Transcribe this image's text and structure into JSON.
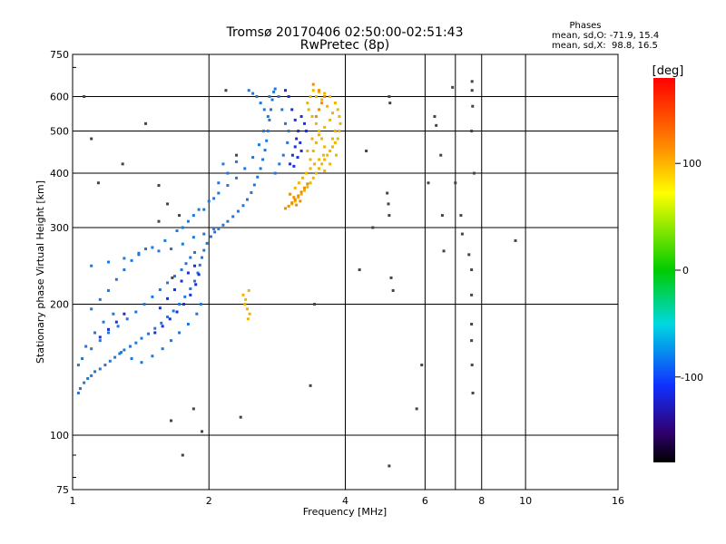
{
  "chart_data": {
    "type": "scatter",
    "title": "Tromsø 20170406 02:50:00-02:51:43",
    "subtitle": "RwPretec (8p)",
    "xlabel": "Frequency [MHz]",
    "ylabel": "Stationary phase Virtual Height [km]",
    "x_scale": "log",
    "y_scale": "log",
    "xlim": [
      1,
      16
    ],
    "ylim": [
      75,
      750
    ],
    "x_ticks": [
      1,
      2,
      4,
      6,
      8,
      10,
      16
    ],
    "y_ticks": [
      75,
      100,
      200,
      300,
      400,
      500,
      600,
      750
    ],
    "x_grid": [
      1,
      2,
      4,
      6,
      7,
      8,
      10
    ],
    "y_grid": [
      100,
      200,
      300,
      400,
      500,
      600
    ],
    "grid": true,
    "phase_stats": {
      "heading": "Phases",
      "line_o": "mean, sd,O: -71.9, 15.4",
      "line_x": "mean, sd,X:  98.8, 16.5"
    },
    "colorbar": {
      "label": "[deg]",
      "range": [
        -180,
        180
      ],
      "ticks": [
        100,
        0,
        -100
      ]
    },
    "series": [
      {
        "trace": "low-frequency trace",
        "color": "#1e78dc",
        "points": [
          [
            1.03,
            125
          ],
          [
            1.04,
            128
          ],
          [
            1.06,
            132
          ],
          [
            1.08,
            135
          ],
          [
            1.1,
            137
          ],
          [
            1.12,
            140
          ],
          [
            1.15,
            142
          ],
          [
            1.18,
            145
          ],
          [
            1.21,
            148
          ],
          [
            1.24,
            151
          ],
          [
            1.27,
            154
          ],
          [
            1.3,
            157
          ],
          [
            1.34,
            160
          ],
          [
            1.38,
            163
          ],
          [
            1.42,
            167
          ],
          [
            1.47,
            171
          ],
          [
            1.52,
            176
          ],
          [
            1.57,
            181
          ],
          [
            1.62,
            187
          ],
          [
            1.67,
            193
          ],
          [
            1.72,
            200
          ],
          [
            1.77,
            208
          ],
          [
            1.82,
            217
          ],
          [
            1.86,
            226
          ],
          [
            1.89,
            236
          ],
          [
            1.91,
            246
          ],
          [
            1.93,
            256
          ],
          [
            1.95,
            266
          ],
          [
            1.98,
            276
          ],
          [
            2.02,
            286
          ],
          [
            2.06,
            293
          ],
          [
            2.1,
            298
          ],
          [
            2.15,
            304
          ],
          [
            2.2,
            310
          ],
          [
            2.26,
            318
          ],
          [
            2.32,
            327
          ],
          [
            2.38,
            337
          ],
          [
            2.43,
            348
          ],
          [
            2.48,
            361
          ],
          [
            2.52,
            376
          ],
          [
            2.56,
            392
          ],
          [
            2.6,
            410
          ],
          [
            2.63,
            430
          ],
          [
            2.66,
            452
          ],
          [
            2.68,
            475
          ],
          [
            2.7,
            500
          ],
          [
            2.72,
            530
          ],
          [
            2.74,
            560
          ],
          [
            2.76,
            590
          ],
          [
            2.78,
            615
          ],
          [
            2.8,
            625
          ],
          [
            1.05,
            150
          ],
          [
            1.1,
            158
          ],
          [
            1.15,
            165
          ],
          [
            1.2,
            172
          ],
          [
            1.26,
            178
          ],
          [
            1.32,
            185
          ],
          [
            1.38,
            192
          ],
          [
            1.44,
            200
          ],
          [
            1.5,
            208
          ],
          [
            1.56,
            216
          ],
          [
            1.62,
            224
          ],
          [
            1.68,
            232
          ],
          [
            1.74,
            240
          ],
          [
            1.78,
            248
          ],
          [
            1.82,
            256
          ],
          [
            1.86,
            263
          ],
          [
            1.03,
            145
          ],
          [
            1.07,
            160
          ],
          [
            1.12,
            172
          ],
          [
            1.17,
            182
          ],
          [
            1.23,
            190
          ],
          [
            1.1,
            195
          ],
          [
            1.15,
            205
          ],
          [
            1.2,
            215
          ],
          [
            1.25,
            228
          ],
          [
            1.3,
            240
          ],
          [
            1.35,
            252
          ],
          [
            1.4,
            262
          ],
          [
            1.45,
            268
          ],
          [
            1.55,
            265
          ],
          [
            1.65,
            268
          ],
          [
            1.75,
            275
          ],
          [
            1.85,
            285
          ],
          [
            1.95,
            290
          ],
          [
            2.05,
            298
          ],
          [
            1.9,
            330
          ],
          [
            2.0,
            345
          ],
          [
            2.1,
            360
          ],
          [
            2.2,
            375
          ],
          [
            2.3,
            390
          ],
          [
            2.4,
            410
          ],
          [
            2.5,
            435
          ],
          [
            2.58,
            465
          ],
          [
            2.64,
            500
          ],
          [
            2.7,
            540
          ],
          [
            1.92,
            200
          ],
          [
            1.88,
            190
          ],
          [
            1.8,
            180
          ],
          [
            1.72,
            172
          ],
          [
            1.65,
            165
          ],
          [
            1.58,
            158
          ],
          [
            1.5,
            152
          ],
          [
            1.42,
            147
          ],
          [
            1.35,
            150
          ],
          [
            1.28,
            155
          ],
          [
            2.45,
            620
          ],
          [
            2.55,
            600
          ],
          [
            2.6,
            580
          ],
          [
            2.65,
            560
          ],
          [
            2.72,
            600
          ],
          [
            2.5,
            610
          ],
          [
            2.85,
            600
          ],
          [
            2.9,
            560
          ],
          [
            2.95,
            520
          ],
          [
            3.0,
            500
          ],
          [
            2.98,
            470
          ],
          [
            2.92,
            440
          ],
          [
            2.86,
            420
          ],
          [
            2.8,
            400
          ],
          [
            2.3,
            425
          ],
          [
            2.2,
            400
          ],
          [
            2.1,
            380
          ],
          [
            2.15,
            420
          ],
          [
            2.05,
            350
          ],
          [
            1.95,
            330
          ],
          [
            1.85,
            320
          ],
          [
            1.8,
            310
          ],
          [
            1.75,
            300
          ],
          [
            1.7,
            295
          ],
          [
            1.6,
            280
          ],
          [
            1.5,
            270
          ],
          [
            1.4,
            260
          ],
          [
            1.3,
            255
          ],
          [
            1.2,
            250
          ],
          [
            1.1,
            245
          ]
        ]
      },
      {
        "trace": "deep blue O-mode",
        "color": "#1830d8",
        "points": [
          [
            1.52,
            172
          ],
          [
            1.58,
            178
          ],
          [
            1.64,
            185
          ],
          [
            1.7,
            192
          ],
          [
            1.76,
            200
          ],
          [
            1.82,
            210
          ],
          [
            1.87,
            222
          ],
          [
            1.9,
            234
          ],
          [
            1.86,
            245
          ],
          [
            1.8,
            236
          ],
          [
            1.74,
            226
          ],
          [
            1.68,
            216
          ],
          [
            1.62,
            206
          ],
          [
            1.56,
            196
          ],
          [
            1.3,
            190
          ],
          [
            1.25,
            182
          ],
          [
            1.2,
            175
          ],
          [
            1.15,
            168
          ],
          [
            3.02,
            420
          ],
          [
            3.06,
            440
          ],
          [
            3.1,
            460
          ],
          [
            3.12,
            480
          ],
          [
            3.15,
            500
          ],
          [
            3.1,
            530
          ],
          [
            3.05,
            560
          ],
          [
            3.0,
            600
          ],
          [
            2.95,
            620
          ],
          [
            3.18,
            470
          ],
          [
            3.2,
            450
          ],
          [
            3.14,
            435
          ],
          [
            3.08,
            415
          ],
          [
            3.2,
            540
          ],
          [
            3.25,
            520
          ],
          [
            3.28,
            500
          ]
        ]
      },
      {
        "trace": "X-mode trace",
        "color": "#f0b400",
        "points": [
          [
            3.05,
            340
          ],
          [
            3.1,
            345
          ],
          [
            3.15,
            352
          ],
          [
            3.2,
            358
          ],
          [
            3.25,
            365
          ],
          [
            3.3,
            372
          ],
          [
            3.35,
            380
          ],
          [
            3.4,
            390
          ],
          [
            3.45,
            400
          ],
          [
            3.5,
            410
          ],
          [
            3.55,
            420
          ],
          [
            3.6,
            430
          ],
          [
            3.65,
            440
          ],
          [
            3.7,
            450
          ],
          [
            3.75,
            460
          ],
          [
            3.8,
            470
          ],
          [
            3.85,
            480
          ],
          [
            3.88,
            500
          ],
          [
            3.9,
            520
          ],
          [
            3.88,
            540
          ],
          [
            3.85,
            560
          ],
          [
            3.8,
            580
          ],
          [
            3.7,
            600
          ],
          [
            3.6,
            610
          ],
          [
            3.5,
            615
          ],
          [
            3.4,
            620
          ],
          [
            3.35,
            600
          ],
          [
            3.3,
            580
          ],
          [
            3.32,
            560
          ],
          [
            3.38,
            540
          ],
          [
            3.45,
            520
          ],
          [
            3.5,
            500
          ],
          [
            3.55,
            480
          ],
          [
            3.6,
            460
          ],
          [
            3.58,
            440
          ],
          [
            3.5,
            430
          ],
          [
            3.42,
            420
          ],
          [
            3.35,
            410
          ],
          [
            3.28,
            400
          ],
          [
            3.22,
            390
          ],
          [
            3.16,
            380
          ],
          [
            3.1,
            370
          ],
          [
            3.4,
            450
          ],
          [
            3.45,
            470
          ],
          [
            3.5,
            490
          ],
          [
            3.6,
            510
          ],
          [
            3.7,
            530
          ],
          [
            3.75,
            550
          ],
          [
            3.65,
            570
          ],
          [
            3.55,
            590
          ],
          [
            3.45,
            600
          ],
          [
            3.75,
            480
          ],
          [
            3.8,
            500
          ],
          [
            3.82,
            440
          ],
          [
            3.7,
            420
          ],
          [
            3.6,
            405
          ],
          [
            3.35,
            430
          ],
          [
            3.3,
            450
          ],
          [
            3.38,
            480
          ],
          [
            2.4,
            200
          ],
          [
            2.43,
            195
          ],
          [
            2.46,
            190
          ],
          [
            2.44,
            185
          ],
          [
            2.41,
            205
          ],
          [
            2.38,
            210
          ],
          [
            2.45,
            215
          ]
        ]
      },
      {
        "trace": "X-mode lower edge",
        "color": "#f08c00",
        "points": [
          [
            2.95,
            332
          ],
          [
            3.0,
            336
          ],
          [
            3.05,
            342
          ],
          [
            3.1,
            348
          ],
          [
            3.15,
            355
          ],
          [
            3.2,
            362
          ],
          [
            3.25,
            370
          ],
          [
            3.3,
            378
          ],
          [
            3.12,
            338
          ],
          [
            3.18,
            345
          ],
          [
            3.08,
            352
          ],
          [
            3.02,
            358
          ],
          [
            3.45,
            540
          ],
          [
            3.5,
            560
          ],
          [
            3.55,
            580
          ],
          [
            3.6,
            600
          ],
          [
            3.5,
            620
          ],
          [
            3.4,
            640
          ]
        ]
      },
      {
        "trace": "isolated returns",
        "color": "#444444",
        "points": [
          [
            1.06,
            600
          ],
          [
            1.1,
            480
          ],
          [
            1.14,
            380
          ],
          [
            1.29,
            420
          ],
          [
            1.45,
            520
          ],
          [
            1.55,
            375
          ],
          [
            1.62,
            340
          ],
          [
            1.66,
            230
          ],
          [
            1.72,
            320
          ],
          [
            1.55,
            310
          ],
          [
            1.65,
            108
          ],
          [
            1.75,
            90
          ],
          [
            1.85,
            115
          ],
          [
            1.93,
            102
          ],
          [
            2.18,
            620
          ],
          [
            2.3,
            440
          ],
          [
            2.35,
            110
          ],
          [
            3.35,
            130
          ],
          [
            3.42,
            200
          ],
          [
            4.3,
            240
          ],
          [
            4.45,
            450
          ],
          [
            4.6,
            300
          ],
          [
            4.95,
            360
          ],
          [
            4.98,
            340
          ],
          [
            5.0,
            320
          ],
          [
            5.0,
            85
          ],
          [
            5.05,
            230
          ],
          [
            5.1,
            215
          ],
          [
            5.75,
            115
          ],
          [
            5.9,
            145
          ],
          [
            6.1,
            380
          ],
          [
            6.3,
            540
          ],
          [
            6.35,
            515
          ],
          [
            6.5,
            440
          ],
          [
            6.55,
            320
          ],
          [
            6.6,
            265
          ],
          [
            7.2,
            320
          ],
          [
            7.25,
            290
          ],
          [
            7.6,
            210
          ],
          [
            7.6,
            180
          ],
          [
            7.6,
            165
          ],
          [
            7.62,
            145
          ],
          [
            7.65,
            125
          ],
          [
            7.62,
            650
          ],
          [
            7.62,
            620
          ],
          [
            7.64,
            570
          ],
          [
            7.6,
            500
          ],
          [
            7.7,
            400
          ],
          [
            7.5,
            260
          ],
          [
            7.6,
            240
          ],
          [
            9.5,
            280
          ],
          [
            6.9,
            630
          ],
          [
            7.0,
            380
          ],
          [
            5.0,
            600
          ],
          [
            5.02,
            580
          ]
        ]
      }
    ]
  }
}
